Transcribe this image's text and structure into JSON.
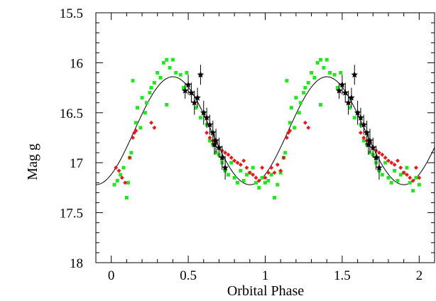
{
  "chart_data": {
    "type": "scatter",
    "title": "",
    "xlabel": "Orbital Phase",
    "ylabel": "Mag g",
    "xlim": [
      -0.1,
      2.1
    ],
    "ylim": [
      15.5,
      18.0
    ],
    "y_inverted": true,
    "x_ticks": [
      0,
      0.5,
      1,
      1.5,
      2
    ],
    "x_tick_labels": [
      "0",
      "0.5",
      "1",
      "1.5",
      "2"
    ],
    "y_ticks": [
      15.5,
      16,
      16.5,
      17,
      17.5,
      18
    ],
    "y_tick_labels": [
      "15.5",
      "16",
      "16.5",
      "17",
      "17.5",
      "18"
    ],
    "colors": {
      "green": "#22e622",
      "red": "#e11d1d",
      "black": "#000000",
      "model": "#000000"
    },
    "model_curve": {
      "description": "sinusoidal fit",
      "mean": 16.68,
      "amplitude": 0.54,
      "phase_of_max": 0.4
    },
    "series": [
      {
        "name": "green squares",
        "marker": "square",
        "color": "#22e622",
        "points": [
          [
            0.02,
            17.22
          ],
          [
            0.04,
            17.18
          ],
          [
            0.06,
            17.12
          ],
          [
            0.08,
            17.05
          ],
          [
            0.1,
            17.35
          ],
          [
            0.11,
            17.2
          ],
          [
            0.12,
            16.95
          ],
          [
            0.13,
            16.9
          ],
          [
            0.14,
            16.18
          ],
          [
            0.16,
            16.6
          ],
          [
            0.17,
            16.45
          ],
          [
            0.19,
            16.65
          ],
          [
            0.2,
            16.35
          ],
          [
            0.22,
            16.5
          ],
          [
            0.23,
            16.4
          ],
          [
            0.25,
            16.3
          ],
          [
            0.26,
            16.25
          ],
          [
            0.28,
            16.2
          ],
          [
            0.3,
            16.1
          ],
          [
            0.32,
            16.15
          ],
          [
            0.34,
            16.0
          ],
          [
            0.36,
            15.97
          ],
          [
            0.38,
            16.05
          ],
          [
            0.4,
            15.97
          ],
          [
            0.42,
            16.1
          ],
          [
            0.45,
            16.12
          ],
          [
            0.47,
            16.25
          ],
          [
            0.49,
            16.1
          ],
          [
            0.36,
            16.42
          ],
          [
            0.55,
            16.45
          ],
          [
            0.58,
            16.55
          ],
          [
            0.6,
            16.5
          ],
          [
            0.62,
            16.62
          ],
          [
            0.64,
            16.78
          ],
          [
            0.66,
            16.82
          ],
          [
            0.68,
            16.9
          ],
          [
            0.7,
            16.92
          ],
          [
            0.72,
            17.0
          ],
          [
            0.74,
            17.08
          ],
          [
            0.76,
            17.12
          ],
          [
            0.78,
            17.0
          ],
          [
            0.8,
            17.15
          ],
          [
            0.82,
            17.2
          ],
          [
            0.84,
            17.08
          ],
          [
            0.86,
            17.18
          ],
          [
            0.88,
            17.12
          ],
          [
            0.9,
            17.1
          ],
          [
            0.92,
            17.05
          ],
          [
            0.94,
            17.2
          ],
          [
            0.96,
            17.25
          ],
          [
            0.98,
            17.15
          ],
          [
            1.0,
            17.2
          ],
          [
            1.02,
            17.18
          ],
          [
            1.04,
            17.12
          ],
          [
            1.06,
            17.35
          ],
          [
            1.08,
            17.22
          ],
          [
            1.1,
            17.1
          ],
          [
            1.12,
            16.95
          ],
          [
            1.13,
            16.9
          ],
          [
            1.14,
            16.18
          ],
          [
            1.16,
            16.6
          ],
          [
            1.17,
            16.45
          ],
          [
            1.19,
            16.65
          ],
          [
            1.2,
            16.35
          ],
          [
            1.22,
            16.5
          ],
          [
            1.23,
            16.4
          ],
          [
            1.25,
            16.3
          ],
          [
            1.26,
            16.25
          ],
          [
            1.28,
            16.2
          ],
          [
            1.3,
            16.1
          ],
          [
            1.32,
            16.15
          ],
          [
            1.34,
            16.0
          ],
          [
            1.36,
            15.97
          ],
          [
            1.38,
            16.05
          ],
          [
            1.4,
            15.97
          ],
          [
            1.42,
            16.1
          ],
          [
            1.45,
            16.12
          ],
          [
            1.47,
            16.25
          ],
          [
            1.49,
            16.1
          ],
          [
            1.36,
            16.42
          ],
          [
            1.55,
            16.45
          ],
          [
            1.58,
            16.55
          ],
          [
            1.6,
            16.5
          ],
          [
            1.62,
            16.62
          ],
          [
            1.64,
            16.78
          ],
          [
            1.66,
            16.82
          ],
          [
            1.68,
            16.9
          ],
          [
            1.7,
            16.92
          ],
          [
            1.72,
            17.0
          ],
          [
            1.74,
            17.08
          ],
          [
            1.76,
            17.12
          ],
          [
            1.78,
            17.0
          ],
          [
            1.8,
            17.15
          ],
          [
            1.82,
            17.2
          ],
          [
            1.84,
            17.08
          ],
          [
            1.86,
            17.18
          ],
          [
            1.88,
            17.12
          ],
          [
            1.9,
            17.1
          ],
          [
            1.92,
            17.05
          ],
          [
            1.94,
            17.2
          ],
          [
            1.96,
            17.28
          ],
          [
            1.98,
            17.15
          ],
          [
            2.0,
            17.22
          ]
        ]
      },
      {
        "name": "red diamonds",
        "marker": "diamond",
        "color": "#e11d1d",
        "points": [
          [
            0.03,
            17.05
          ],
          [
            0.05,
            17.08
          ],
          [
            0.07,
            17.15
          ],
          [
            0.09,
            17.2
          ],
          [
            0.12,
            16.95
          ],
          [
            0.14,
            16.75
          ],
          [
            0.15,
            16.7
          ],
          [
            0.16,
            16.68
          ],
          [
            0.26,
            16.6
          ],
          [
            0.28,
            16.65
          ],
          [
            0.62,
            16.7
          ],
          [
            0.64,
            16.75
          ],
          [
            0.66,
            16.78
          ],
          [
            0.68,
            16.8
          ],
          [
            0.7,
            16.85
          ],
          [
            0.72,
            16.88
          ],
          [
            0.74,
            16.9
          ],
          [
            0.76,
            16.92
          ],
          [
            0.78,
            16.95
          ],
          [
            0.8,
            16.98
          ],
          [
            0.82,
            17.0
          ],
          [
            0.84,
            17.02
          ],
          [
            0.86,
            16.98
          ],
          [
            0.88,
            17.05
          ],
          [
            0.9,
            17.1
          ],
          [
            0.92,
            17.12
          ],
          [
            0.94,
            17.15
          ],
          [
            0.96,
            17.18
          ],
          [
            0.98,
            17.05
          ],
          [
            1.0,
            17.15
          ],
          [
            1.02,
            17.1
          ],
          [
            1.04,
            17.05
          ],
          [
            1.06,
            17.1
          ],
          [
            1.08,
            17.02
          ],
          [
            1.1,
            17.08
          ],
          [
            1.12,
            16.95
          ],
          [
            1.14,
            16.75
          ],
          [
            1.15,
            16.7
          ],
          [
            1.16,
            16.68
          ],
          [
            1.26,
            16.6
          ],
          [
            1.28,
            16.65
          ],
          [
            1.62,
            16.7
          ],
          [
            1.64,
            16.75
          ],
          [
            1.66,
            16.78
          ],
          [
            1.68,
            16.8
          ],
          [
            1.7,
            16.85
          ],
          [
            1.72,
            16.88
          ],
          [
            1.74,
            16.9
          ],
          [
            1.76,
            16.92
          ],
          [
            1.78,
            16.95
          ],
          [
            1.8,
            16.98
          ],
          [
            1.82,
            17.0
          ],
          [
            1.84,
            17.02
          ],
          [
            1.86,
            16.98
          ],
          [
            1.88,
            17.05
          ],
          [
            1.9,
            17.1
          ],
          [
            1.92,
            17.12
          ],
          [
            1.94,
            17.15
          ],
          [
            1.96,
            17.18
          ],
          [
            1.98,
            17.05
          ],
          [
            2.0,
            17.15
          ]
        ]
      },
      {
        "name": "black stars with error bars",
        "marker": "star",
        "color": "#000000",
        "points": [
          [
            0.48,
            16.28,
            0.08
          ],
          [
            0.5,
            16.22,
            0.1
          ],
          [
            0.52,
            16.3,
            0.1
          ],
          [
            0.54,
            16.4,
            0.12
          ],
          [
            0.56,
            16.35,
            0.1
          ],
          [
            0.58,
            16.12,
            0.1
          ],
          [
            0.6,
            16.5,
            0.12
          ],
          [
            0.62,
            16.55,
            0.1
          ],
          [
            0.64,
            16.62,
            0.1
          ],
          [
            0.66,
            16.7,
            0.12
          ],
          [
            0.67,
            16.82,
            0.1
          ],
          [
            0.68,
            16.78,
            0.12
          ],
          [
            0.7,
            16.85,
            0.1
          ],
          [
            0.72,
            16.95,
            0.12
          ],
          [
            0.74,
            17.05,
            0.12
          ],
          [
            1.48,
            16.28,
            0.08
          ],
          [
            1.5,
            16.22,
            0.1
          ],
          [
            1.52,
            16.3,
            0.1
          ],
          [
            1.54,
            16.4,
            0.12
          ],
          [
            1.56,
            16.35,
            0.1
          ],
          [
            1.58,
            16.12,
            0.1
          ],
          [
            1.6,
            16.5,
            0.12
          ],
          [
            1.62,
            16.55,
            0.1
          ],
          [
            1.64,
            16.62,
            0.1
          ],
          [
            1.66,
            16.7,
            0.12
          ],
          [
            1.67,
            16.82,
            0.1
          ],
          [
            1.68,
            16.78,
            0.12
          ],
          [
            1.7,
            16.85,
            0.1
          ],
          [
            1.72,
            16.95,
            0.12
          ],
          [
            1.74,
            17.05,
            0.12
          ]
        ]
      }
    ]
  }
}
